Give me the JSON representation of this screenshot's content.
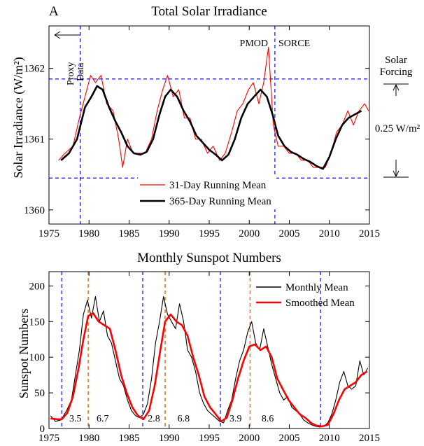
{
  "chart_data": [
    {
      "type": "line",
      "panel_label": "A",
      "title": "Total Solar Irradiance",
      "ylabel": "Solar Irradiance (W/m²)",
      "xlim": [
        1975,
        2015
      ],
      "ylim": [
        1359.8,
        1362.6
      ],
      "x_ticks": [
        1975,
        1980,
        1985,
        1990,
        1995,
        2000,
        2005,
        2010,
        2015
      ],
      "y_ticks": [
        1360,
        1361,
        1362
      ],
      "legend": {
        "position": "lower-center",
        "entries": [
          "31-Day Running Mean",
          "365-Day Running Mean"
        ]
      },
      "series": [
        {
          "name": "31-Day Running Mean",
          "color": "#ff0000",
          "x": [
            1976.2,
            1977.0,
            1978.0,
            1978.8,
            1979.5,
            1980.2,
            1980.8,
            1981.5,
            1982.2,
            1983.0,
            1983.7,
            1984.2,
            1984.8,
            1985.5,
            1986.2,
            1987.0,
            1987.8,
            1988.5,
            1989.2,
            1989.8,
            1990.5,
            1991.2,
            1991.9,
            1992.6,
            1993.3,
            1994.0,
            1994.8,
            1995.5,
            1996.3,
            1997.0,
            1997.8,
            1998.5,
            1999.2,
            1999.9,
            2000.5,
            2001.2,
            2001.8,
            2002.4,
            2003.0,
            2003.6,
            2004.3,
            2005.0,
            2005.8,
            2006.5,
            2007.3,
            2008.0,
            2008.8,
            2009.5,
            2010.2,
            2010.9,
            2011.6,
            2012.3,
            2013.0,
            2013.7,
            2014.4,
            2014.9
          ],
          "y": [
            1360.7,
            1360.8,
            1360.9,
            1361.3,
            1361.6,
            1361.9,
            1361.8,
            1361.9,
            1361.5,
            1361.4,
            1361.0,
            1360.6,
            1361.0,
            1360.8,
            1360.8,
            1360.8,
            1361.0,
            1361.4,
            1361.7,
            1361.9,
            1361.6,
            1361.7,
            1361.3,
            1361.3,
            1361.0,
            1361.0,
            1360.8,
            1360.9,
            1360.7,
            1360.8,
            1361.1,
            1361.4,
            1361.5,
            1361.7,
            1361.8,
            1361.5,
            1361.8,
            1362.3,
            1361.2,
            1360.9,
            1360.9,
            1360.8,
            1360.8,
            1360.7,
            1360.7,
            1360.6,
            1360.6,
            1360.6,
            1360.8,
            1361.1,
            1361.2,
            1361.4,
            1361.2,
            1361.4,
            1361.5,
            1361.4
          ]
        },
        {
          "name": "365-Day Running Mean",
          "color": "#000000",
          "x": [
            1976.5,
            1977.5,
            1978.5,
            1979.5,
            1980.3,
            1981.0,
            1981.7,
            1982.5,
            1983.3,
            1984.0,
            1984.8,
            1985.6,
            1986.4,
            1987.2,
            1988.0,
            1988.8,
            1989.5,
            1990.2,
            1991.0,
            1991.8,
            1992.6,
            1993.4,
            1994.2,
            1995.0,
            1995.8,
            1996.6,
            1997.4,
            1998.2,
            1999.0,
            1999.8,
            2000.6,
            2001.4,
            2002.2,
            2002.9,
            2003.6,
            2004.4,
            2005.2,
            2006.0,
            2006.8,
            2007.6,
            2008.4,
            2009.2,
            2010.0,
            2010.8,
            2011.6,
            2012.4,
            2013.2,
            2014.0
          ],
          "y": [
            1360.7,
            1360.8,
            1361.0,
            1361.45,
            1361.6,
            1361.75,
            1361.7,
            1361.45,
            1361.25,
            1361.1,
            1360.9,
            1360.8,
            1360.78,
            1360.82,
            1361.0,
            1361.35,
            1361.6,
            1361.7,
            1361.6,
            1361.4,
            1361.25,
            1361.05,
            1360.95,
            1360.85,
            1360.78,
            1360.7,
            1360.78,
            1361.0,
            1361.3,
            1361.5,
            1361.6,
            1361.7,
            1361.6,
            1361.35,
            1361.05,
            1360.9,
            1360.82,
            1360.78,
            1360.72,
            1360.68,
            1360.62,
            1360.58,
            1360.75,
            1361.0,
            1361.2,
            1361.3,
            1361.35,
            1361.4
          ]
        }
      ],
      "hlines": [
        1361.85,
        1360.45
      ],
      "vlines": [
        1978.9,
        2003.2
      ],
      "annotations": {
        "proxy": "Proxy Data",
        "pmod": "PMOD",
        "sorce": "SORCE",
        "forcing_label": "Solar Forcing",
        "forcing_value": "0.25 W/m²"
      }
    },
    {
      "type": "line",
      "title": "Monthly Sunspot Numbers",
      "ylabel": "Sunspot Numbers",
      "xlim": [
        1975,
        2015
      ],
      "ylim": [
        0,
        220
      ],
      "x_ticks": [
        1975,
        1980,
        1985,
        1990,
        1995,
        2000,
        2005,
        2010,
        2015
      ],
      "y_ticks": [
        0,
        50,
        100,
        150,
        200
      ],
      "legend": {
        "position": "top-right",
        "entries": [
          "Monthly Mean",
          "Smoothed Mean"
        ]
      },
      "series": [
        {
          "name": "Monthly Mean",
          "color": "#000000",
          "x": [
            1975.2,
            1975.8,
            1976.5,
            1977.2,
            1977.8,
            1978.3,
            1978.8,
            1979.3,
            1979.8,
            1980.3,
            1980.8,
            1981.3,
            1981.8,
            1982.3,
            1982.8,
            1983.3,
            1983.8,
            1984.3,
            1984.8,
            1985.3,
            1985.8,
            1986.3,
            1986.8,
            1987.3,
            1987.8,
            1988.3,
            1988.8,
            1989.3,
            1989.8,
            1990.3,
            1990.8,
            1991.3,
            1991.8,
            1992.3,
            1992.8,
            1993.3,
            1993.8,
            1994.3,
            1994.8,
            1995.3,
            1995.8,
            1996.3,
            1996.8,
            1997.3,
            1997.8,
            1998.3,
            1998.8,
            1999.3,
            1999.8,
            2000.3,
            2000.8,
            2001.3,
            2001.8,
            2002.3,
            2002.8,
            2003.3,
            2003.8,
            2004.3,
            2004.8,
            2005.3,
            2005.8,
            2006.3,
            2006.8,
            2007.3,
            2007.8,
            2008.3,
            2008.8,
            2009.3,
            2009.8,
            2010.3,
            2010.8,
            2011.3,
            2011.8,
            2012.3,
            2012.8,
            2013.3,
            2013.8,
            2014.3,
            2014.8
          ],
          "y": [
            18,
            10,
            12,
            25,
            40,
            75,
            110,
            160,
            180,
            155,
            185,
            150,
            165,
            130,
            120,
            95,
            70,
            60,
            40,
            25,
            18,
            15,
            20,
            35,
            70,
            120,
            150,
            185,
            160,
            150,
            140,
            175,
            150,
            110,
            100,
            80,
            50,
            35,
            25,
            20,
            15,
            10,
            8,
            25,
            40,
            70,
            95,
            110,
            135,
            150,
            120,
            110,
            140,
            115,
            90,
            70,
            50,
            40,
            45,
            30,
            25,
            20,
            12,
            8,
            5,
            3,
            2,
            3,
            8,
            20,
            40,
            65,
            80,
            60,
            55,
            60,
            95,
            75,
            85
          ]
        },
        {
          "name": "Smoothed Mean",
          "color": "#ff0000",
          "x": [
            1975.2,
            1976.0,
            1976.6,
            1977.3,
            1978.0,
            1978.7,
            1979.3,
            1979.9,
            1980.5,
            1981.2,
            1981.9,
            1982.6,
            1983.3,
            1984.0,
            1984.7,
            1985.4,
            1986.1,
            1986.8,
            1987.5,
            1988.2,
            1988.9,
            1989.5,
            1990.2,
            1990.9,
            1991.6,
            1992.3,
            1993.0,
            1993.7,
            1994.4,
            1995.1,
            1995.8,
            1996.5,
            1997.2,
            1997.9,
            1998.6,
            1999.3,
            2000.0,
            2000.7,
            2001.4,
            2002.1,
            2002.8,
            2003.5,
            2004.2,
            2004.9,
            2005.6,
            2006.3,
            2007.0,
            2007.7,
            2008.4,
            2009.1,
            2009.8,
            2010.5,
            2011.2,
            2011.9,
            2012.6,
            2013.3,
            2014.0,
            2014.7
          ],
          "y": [
            14,
            13,
            13,
            22,
            45,
            85,
            125,
            158,
            162,
            150,
            145,
            140,
            110,
            75,
            50,
            30,
            18,
            13,
            25,
            60,
            110,
            150,
            160,
            150,
            145,
            130,
            100,
            75,
            45,
            30,
            20,
            10,
            15,
            40,
            70,
            95,
            115,
            118,
            110,
            115,
            100,
            70,
            55,
            40,
            30,
            20,
            15,
            8,
            4,
            3,
            5,
            20,
            40,
            55,
            60,
            65,
            75,
            80
          ]
        }
      ],
      "blue_vlines": [
        1976.6,
        1986.7,
        1996.4,
        2008.9
      ],
      "orange_vlines": [
        1979.9,
        1989.5,
        2000.1
      ],
      "annotations": [
        {
          "text": "3.5",
          "x": 1978.3
        },
        {
          "text": "6.7",
          "x": 1981.7
        },
        {
          "text": "2.8",
          "x": 1988.1
        },
        {
          "text": "6.8",
          "x": 1991.8
        },
        {
          "text": "3.9",
          "x": 1998.3
        },
        {
          "text": "8.6",
          "x": 2002.3
        }
      ]
    }
  ]
}
